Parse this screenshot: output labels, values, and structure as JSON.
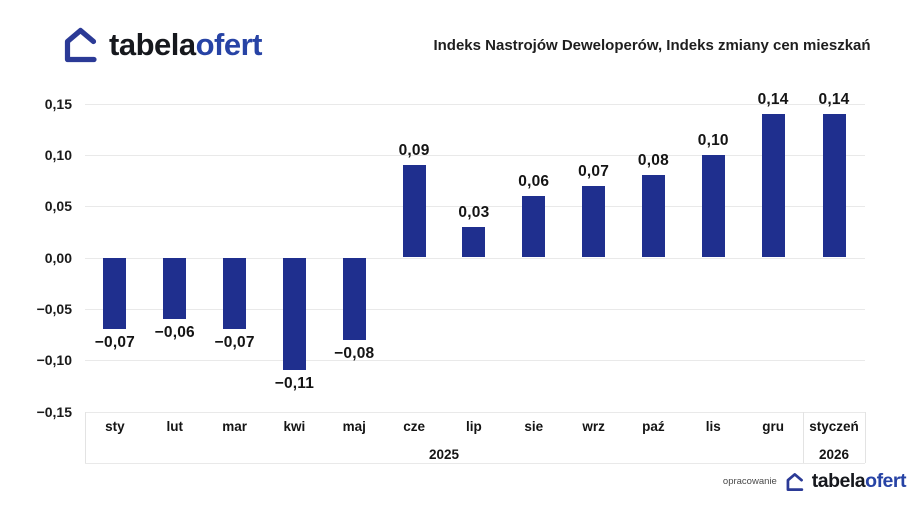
{
  "header": {
    "logo": {
      "black": "tabela",
      "blue": "ofert"
    },
    "title": "Indeks Nastrojów Deweloperów, Indeks zmiany cen mieszkań"
  },
  "chart_data": {
    "type": "bar",
    "title": "Indeks Nastrojów Deweloperów, Indeks zmiany cen mieszkań",
    "bar_color": "#1f2f8e",
    "grid": true,
    "ylim": [
      -0.15,
      0.15
    ],
    "y_ticks": [
      {
        "value": 0.15,
        "label": "0,15"
      },
      {
        "value": 0.1,
        "label": "0,10"
      },
      {
        "value": 0.05,
        "label": "0,05"
      },
      {
        "value": 0.0,
        "label": "0,00"
      },
      {
        "value": -0.05,
        "label": "−0,05"
      },
      {
        "value": -0.1,
        "label": "−0,10"
      },
      {
        "value": -0.15,
        "label": "−0,15"
      }
    ],
    "points": [
      {
        "month": "sty",
        "year": "2025",
        "value": -0.07,
        "label": "−0,07"
      },
      {
        "month": "lut",
        "year": "2025",
        "value": -0.06,
        "label": "−0,06"
      },
      {
        "month": "mar",
        "year": "2025",
        "value": -0.07,
        "label": "−0,07"
      },
      {
        "month": "kwi",
        "year": "2025",
        "value": -0.11,
        "label": "−0,11"
      },
      {
        "month": "maj",
        "year": "2025",
        "value": -0.08,
        "label": "−0,08"
      },
      {
        "month": "cze",
        "year": "2025",
        "value": 0.09,
        "label": "0,09"
      },
      {
        "month": "lip",
        "year": "2025",
        "value": 0.03,
        "label": "0,03"
      },
      {
        "month": "sie",
        "year": "2025",
        "value": 0.06,
        "label": "0,06"
      },
      {
        "month": "wrz",
        "year": "2025",
        "value": 0.07,
        "label": "0,07"
      },
      {
        "month": "paź",
        "year": "2025",
        "value": 0.08,
        "label": "0,08"
      },
      {
        "month": "lis",
        "year": "2025",
        "value": 0.1,
        "label": "0,10"
      },
      {
        "month": "gru",
        "year": "2025",
        "value": 0.14,
        "label": "0,14"
      },
      {
        "month": "styczeń",
        "year": "2026",
        "value": 0.14,
        "label": "0,14"
      }
    ],
    "year_groups": [
      {
        "label": "2025",
        "count": 12
      },
      {
        "label": "2026",
        "count": 1
      }
    ]
  },
  "footer": {
    "credit": "opracowanie",
    "logo": {
      "black": "tabela",
      "blue": "ofert"
    }
  },
  "colors": {
    "bar": "#1f2f8e",
    "logo_blue": "#2743a5",
    "logo_black": "#16181d",
    "gridline": "#e9e9e9",
    "background": "#ffffff"
  }
}
